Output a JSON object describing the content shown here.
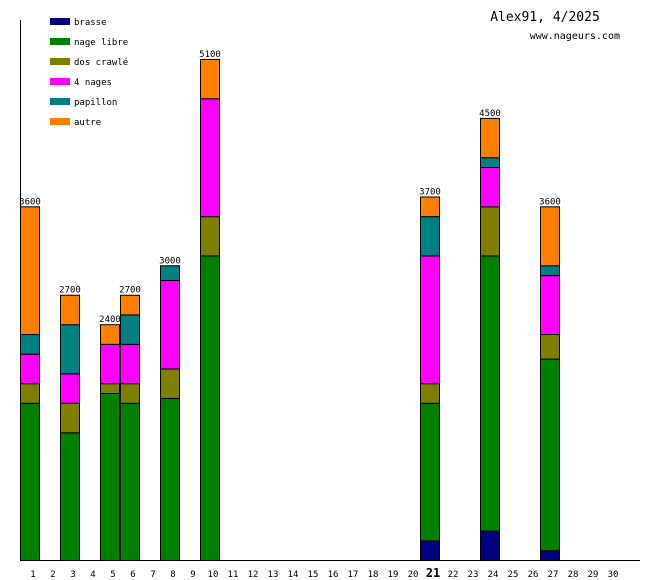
{
  "header": {
    "title": "Alex91, 4/2025",
    "site": "www.nageurs.com"
  },
  "chart_data": {
    "type": "bar",
    "stacked": true,
    "xlabel": "",
    "ylabel": "",
    "ylim": [
      0,
      5700
    ],
    "categories": [
      "1",
      "2",
      "3",
      "4",
      "5",
      "6",
      "7",
      "8",
      "9",
      "10",
      "11",
      "12",
      "13",
      "14",
      "15",
      "16",
      "17",
      "18",
      "19",
      "20",
      "21",
      "22",
      "23",
      "24",
      "25",
      "26",
      "27",
      "28",
      "29",
      "30"
    ],
    "highlight_category": "21",
    "legend_position": "top-left",
    "series": [
      {
        "name": "brasse",
        "color": "#000080",
        "values": [
          0,
          0,
          0,
          0,
          0,
          0,
          0,
          0,
          0,
          0,
          0,
          0,
          0,
          0,
          0,
          0,
          0,
          0,
          0,
          0,
          200,
          0,
          0,
          300,
          0,
          0,
          100,
          0,
          0,
          0
        ]
      },
      {
        "name": "nage libre",
        "color": "#008000",
        "values": [
          1600,
          0,
          1300,
          0,
          1700,
          1600,
          0,
          1650,
          0,
          3100,
          0,
          0,
          0,
          0,
          0,
          0,
          0,
          0,
          0,
          0,
          1400,
          0,
          0,
          2800,
          0,
          0,
          1950,
          0,
          0,
          0
        ]
      },
      {
        "name": "dos crawlé",
        "color": "#808000",
        "values": [
          200,
          0,
          300,
          0,
          100,
          200,
          0,
          300,
          0,
          400,
          0,
          0,
          0,
          0,
          0,
          0,
          0,
          0,
          0,
          0,
          200,
          0,
          0,
          500,
          0,
          0,
          250,
          0,
          0,
          0
        ]
      },
      {
        "name": "4 nages",
        "color": "#ff00ff",
        "values": [
          300,
          0,
          300,
          0,
          400,
          400,
          0,
          900,
          0,
          1200,
          0,
          0,
          0,
          0,
          0,
          0,
          0,
          0,
          0,
          0,
          1300,
          0,
          0,
          400,
          0,
          0,
          600,
          0,
          0,
          0
        ]
      },
      {
        "name": "papillon",
        "color": "#008080",
        "values": [
          200,
          0,
          500,
          0,
          0,
          300,
          0,
          150,
          0,
          0,
          0,
          0,
          0,
          0,
          0,
          0,
          0,
          0,
          0,
          0,
          400,
          0,
          0,
          100,
          0,
          0,
          100,
          0,
          0,
          0
        ]
      },
      {
        "name": "autre",
        "color": "#ff8000",
        "values": [
          1300,
          0,
          300,
          0,
          200,
          200,
          0,
          0,
          0,
          400,
          0,
          0,
          0,
          0,
          0,
          0,
          0,
          0,
          0,
          0,
          200,
          0,
          0,
          400,
          0,
          0,
          600,
          0,
          0,
          0
        ]
      }
    ],
    "totals": [
      3600,
      0,
      2700,
      0,
      2400,
      2700,
      0,
      3000,
      0,
      5100,
      0,
      0,
      0,
      0,
      0,
      0,
      0,
      0,
      0,
      0,
      3700,
      0,
      0,
      4500,
      0,
      0,
      3600,
      0,
      0,
      0
    ]
  }
}
